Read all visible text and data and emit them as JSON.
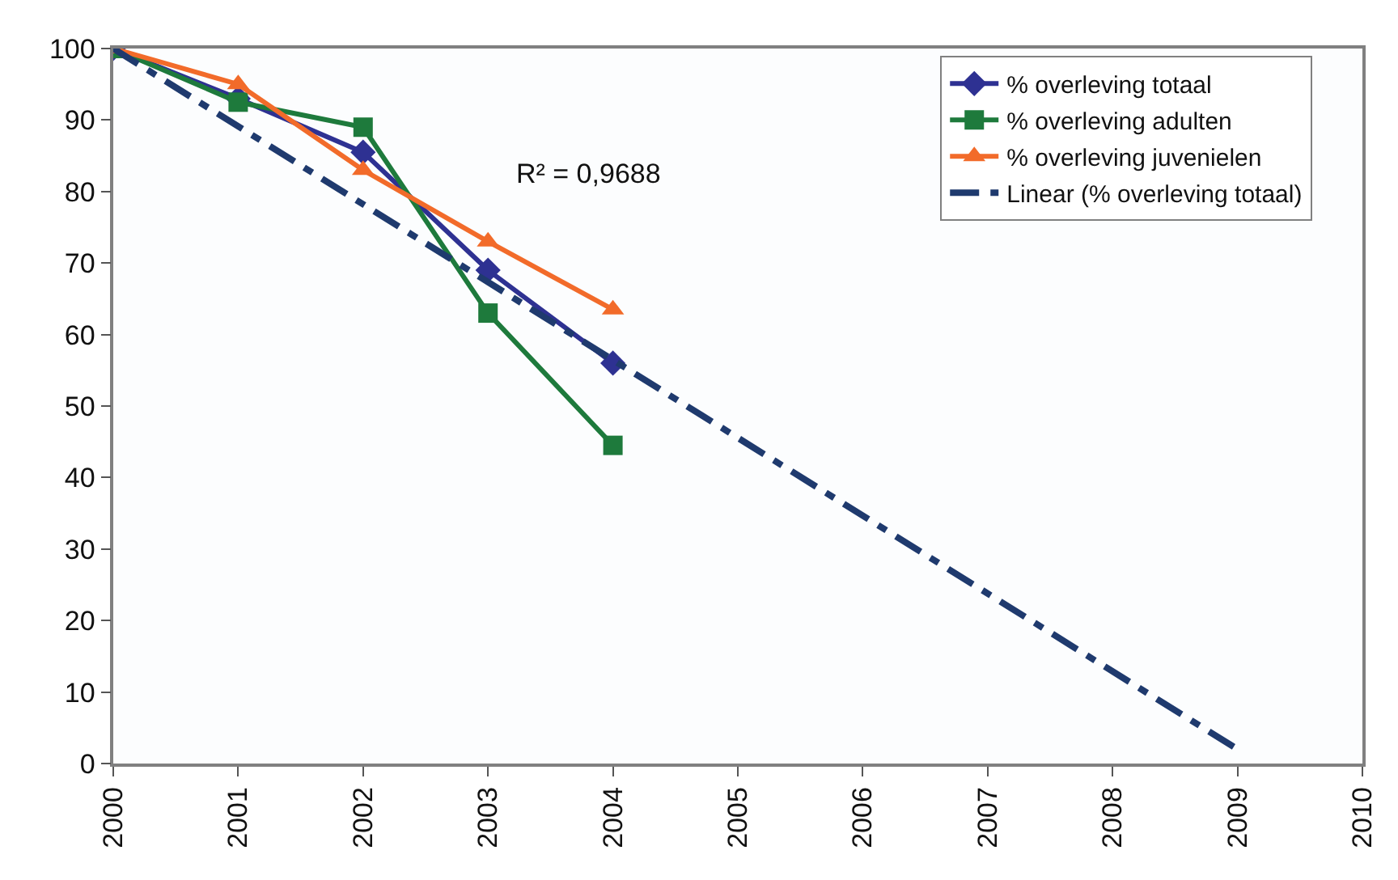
{
  "chart_data": {
    "type": "line",
    "x": [
      2000,
      2001,
      2002,
      2003,
      2004
    ],
    "series": [
      {
        "name": "% overleving totaal",
        "color": "#2e3192",
        "marker": "diamond",
        "values": [
          100,
          93,
          85.5,
          69,
          56
        ]
      },
      {
        "name": "% overleving adulten",
        "color": "#1e7a3c",
        "marker": "square",
        "values": [
          100,
          92.5,
          89,
          63,
          44.5
        ]
      },
      {
        "name": "% overleving juvenielen",
        "color": "#f26b2a",
        "marker": "triangle",
        "values": [
          100,
          95,
          83,
          73,
          63.5
        ]
      },
      {
        "name": "Linear (% overleving totaal)",
        "color": "#1f3a6e",
        "marker": "none",
        "line_style": "dashed",
        "x": [
          2000,
          2009
        ],
        "values": [
          100,
          2
        ]
      }
    ],
    "annotations": [
      "R² = 0,9688"
    ],
    "xlim": [
      2000,
      2010
    ],
    "xticks": [
      2000,
      2001,
      2002,
      2003,
      2004,
      2005,
      2006,
      2007,
      2008,
      2009,
      2010
    ],
    "ylim": [
      0,
      100
    ],
    "yticks": [
      0,
      10,
      20,
      30,
      40,
      50,
      60,
      70,
      80,
      90,
      100
    ],
    "legend": "top right"
  }
}
